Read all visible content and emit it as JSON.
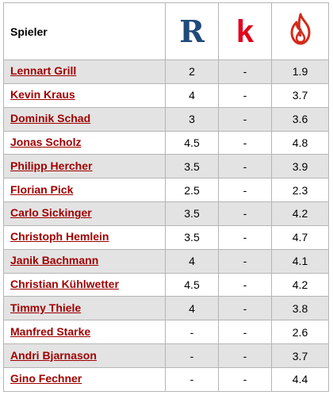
{
  "table": {
    "header": {
      "player_label": "Spieler",
      "columns": [
        {
          "icon": "rating-r-logo-icon",
          "glyph": "R",
          "color": "#1f4a7a"
        },
        {
          "icon": "rating-k-logo-icon",
          "glyph": "k",
          "color": "#e3001b"
        },
        {
          "icon": "flame-logo-icon",
          "color": "#d42a1a"
        }
      ]
    },
    "rows": [
      {
        "name": "Lennart Grill",
        "r": "2",
        "k": "-",
        "f": "1.9"
      },
      {
        "name": "Kevin Kraus",
        "r": "4",
        "k": "-",
        "f": "3.7"
      },
      {
        "name": "Dominik Schad",
        "r": "3",
        "k": "-",
        "f": "3.6"
      },
      {
        "name": "Jonas Scholz",
        "r": "4.5",
        "k": "-",
        "f": "4.8"
      },
      {
        "name": "Philipp Hercher",
        "r": "3.5",
        "k": "-",
        "f": "3.9"
      },
      {
        "name": "Florian Pick",
        "r": "2.5",
        "k": "-",
        "f": "2.3"
      },
      {
        "name": "Carlo Sickinger",
        "r": "3.5",
        "k": "-",
        "f": "4.2"
      },
      {
        "name": "Christoph Hemlein",
        "r": "3.5",
        "k": "-",
        "f": "4.7"
      },
      {
        "name": "Janik Bachmann",
        "r": "4",
        "k": "-",
        "f": "4.1"
      },
      {
        "name": "Christian Kühlwetter",
        "r": "4.5",
        "k": "-",
        "f": "4.2"
      },
      {
        "name": "Timmy Thiele",
        "r": "4",
        "k": "-",
        "f": "3.8"
      },
      {
        "name": "Manfred Starke",
        "r": "-",
        "k": "-",
        "f": "2.6"
      },
      {
        "name": "Andri Bjarnason",
        "r": "-",
        "k": "-",
        "f": "3.7"
      },
      {
        "name": "Gino Fechner",
        "r": "-",
        "k": "-",
        "f": "4.4"
      }
    ]
  }
}
